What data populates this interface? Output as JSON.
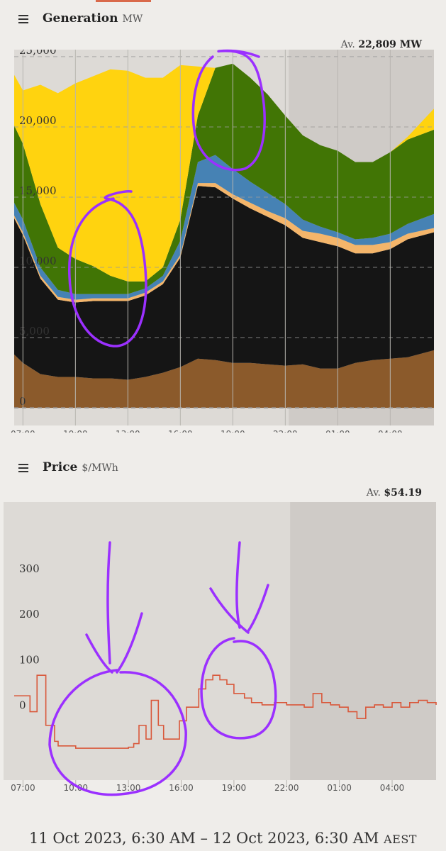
{
  "generation": {
    "title": "Generation",
    "unit": "MW",
    "average_label": "Av.",
    "average_value": "22,809 MW",
    "chart_data": {
      "type": "area",
      "stacked": true,
      "x_ticks": [
        "07:00",
        "10:00",
        "13:00",
        "16:00",
        "19:00",
        "22:00",
        "01:00",
        "04:00"
      ],
      "y_ticks": [
        "25,000",
        "20,000",
        "15,000",
        "10,000",
        "5,000",
        "0"
      ],
      "ylim": [
        -500,
        25500
      ],
      "grid": "dashed horizontal",
      "x_hours": [
        6.5,
        7,
        8,
        9,
        10,
        11,
        12,
        13,
        14,
        15,
        16,
        17,
        18,
        19,
        20,
        21,
        22,
        23,
        24,
        25,
        26,
        27,
        28,
        29,
        30.5
      ],
      "series": [
        {
          "color": "#8b5a2b",
          "values": [
            3800,
            3200,
            2400,
            2200,
            2200,
            2100,
            2100,
            2000,
            2200,
            2500,
            2900,
            3500,
            3400,
            3200,
            3200,
            3100,
            3000,
            3100,
            2800,
            2800,
            3200,
            3400,
            3500,
            3600,
            4100
          ]
        },
        {
          "color": "#151515",
          "values": [
            9700,
            9100,
            6800,
            5500,
            5300,
            5500,
            5500,
            5600,
            5800,
            6300,
            7800,
            12300,
            12300,
            11700,
            11000,
            10500,
            10000,
            9000,
            9000,
            8700,
            7800,
            7600,
            7800,
            8400,
            8400
          ]
        },
        {
          "color": "#f4b56a",
          "values": [
            200,
            200,
            200,
            200,
            200,
            200,
            200,
            200,
            200,
            200,
            200,
            200,
            300,
            300,
            400,
            400,
            500,
            500,
            600,
            600,
            600,
            600,
            500,
            400,
            300
          ]
        },
        {
          "color": "#4682b4",
          "values": [
            900,
            900,
            600,
            500,
            400,
            300,
            300,
            300,
            300,
            400,
            1000,
            1500,
            2000,
            1800,
            1500,
            1300,
            1000,
            800,
            500,
            400,
            400,
            500,
            600,
            700,
            1000
          ]
        },
        {
          "color": "#417505",
          "values": [
            5500,
            5400,
            4500,
            3000,
            2500,
            2000,
            1300,
            900,
            500,
            600,
            1500,
            3300,
            6200,
            7500,
            7400,
            7000,
            6300,
            6000,
            5800,
            5800,
            5500,
            5400,
            5800,
            6000,
            6000
          ]
        },
        {
          "color": "#ffd30f",
          "values": [
            3600,
            3800,
            8500,
            11000,
            12500,
            13500,
            14700,
            15000,
            14500,
            13500,
            11000,
            3500,
            0,
            0,
            0,
            0,
            0,
            0,
            0,
            0,
            0,
            0,
            0,
            200,
            1500
          ]
        }
      ]
    }
  },
  "price": {
    "title": "Price",
    "unit": "$/MWh",
    "average_label": "Av.",
    "average_value": "$54.19",
    "chart_data": {
      "type": "line",
      "step": true,
      "color": "#d9583b",
      "x_ticks": [
        "07:00",
        "10:00",
        "13:00",
        "16:00",
        "19:00",
        "22:00",
        "01:00",
        "04:00"
      ],
      "y_ticks": [
        "300",
        "200",
        "100",
        "0"
      ],
      "ylim": [
        -150,
        460
      ],
      "x_hours": [
        6.5,
        7,
        7.4,
        7.8,
        8.3,
        8.8,
        9,
        10,
        11,
        12,
        13,
        13.3,
        13.6,
        14,
        14.3,
        14.7,
        15,
        15.5,
        15.9,
        16.3,
        16.7,
        17,
        17.4,
        17.8,
        18.2,
        18.6,
        19,
        19.6,
        20,
        20.6,
        21.3,
        22,
        23,
        23.5,
        24,
        24.5,
        25,
        25.5,
        26,
        26.5,
        27,
        27.5,
        28,
        28.5,
        29,
        29.5,
        30,
        30.5
      ],
      "values": [
        35,
        35,
        0,
        80,
        -30,
        -65,
        -75,
        -80,
        -80,
        -80,
        -78,
        -70,
        -30,
        -60,
        25,
        -30,
        -60,
        -60,
        -20,
        10,
        10,
        50,
        70,
        80,
        70,
        60,
        40,
        30,
        20,
        15,
        20,
        15,
        10,
        40,
        20,
        15,
        10,
        0,
        -15,
        10,
        15,
        10,
        20,
        10,
        20,
        25,
        20,
        15
      ]
    }
  },
  "footer": {
    "date_range": "11 Oct 2023, 6:30 AM – 12 Oct 2023, 6:30 AM",
    "timezone": "AEST"
  }
}
